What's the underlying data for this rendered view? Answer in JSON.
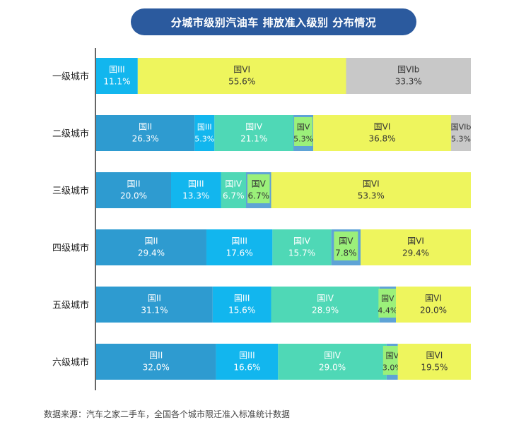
{
  "title": "分城市级别汽油车 排放准入级别 分布情况",
  "source": "数据来源：汽车之家二手车，全国各个城市限迁准入标准统计数据",
  "chart_data": {
    "type": "bar",
    "orientation": "horizontal",
    "stacked": true,
    "normalized": true,
    "categories": [
      "一级城市",
      "二级城市",
      "三级城市",
      "四级城市",
      "五级城市",
      "六级城市"
    ],
    "series": [
      {
        "name": "国II",
        "color": "#2e9bd0",
        "values": [
          0,
          26.3,
          20.0,
          29.4,
          31.1,
          32.0
        ]
      },
      {
        "name": "国III",
        "color": "#12b6ee",
        "values": [
          11.1,
          5.3,
          13.3,
          17.6,
          15.6,
          16.6
        ]
      },
      {
        "name": "国IV",
        "color": "#4fd8b6",
        "values": [
          0,
          21.1,
          6.7,
          15.7,
          28.9,
          29.0
        ]
      },
      {
        "name": "国V",
        "color": "#5ea3d6",
        "values": [
          0,
          5.3,
          6.7,
          7.8,
          4.4,
          3.0
        ]
      },
      {
        "name": "国VI",
        "color": "#eef55d",
        "values": [
          55.6,
          36.8,
          53.3,
          29.4,
          20.0,
          19.5
        ]
      },
      {
        "name": "国VIb",
        "color": "#c8c8c8",
        "values": [
          33.3,
          5.3,
          0,
          0,
          0,
          0
        ]
      }
    ],
    "value_suffix": "%",
    "highlight_series": "国V",
    "highlight_color": "#9bf07a",
    "grid": false,
    "legend": "none"
  }
}
